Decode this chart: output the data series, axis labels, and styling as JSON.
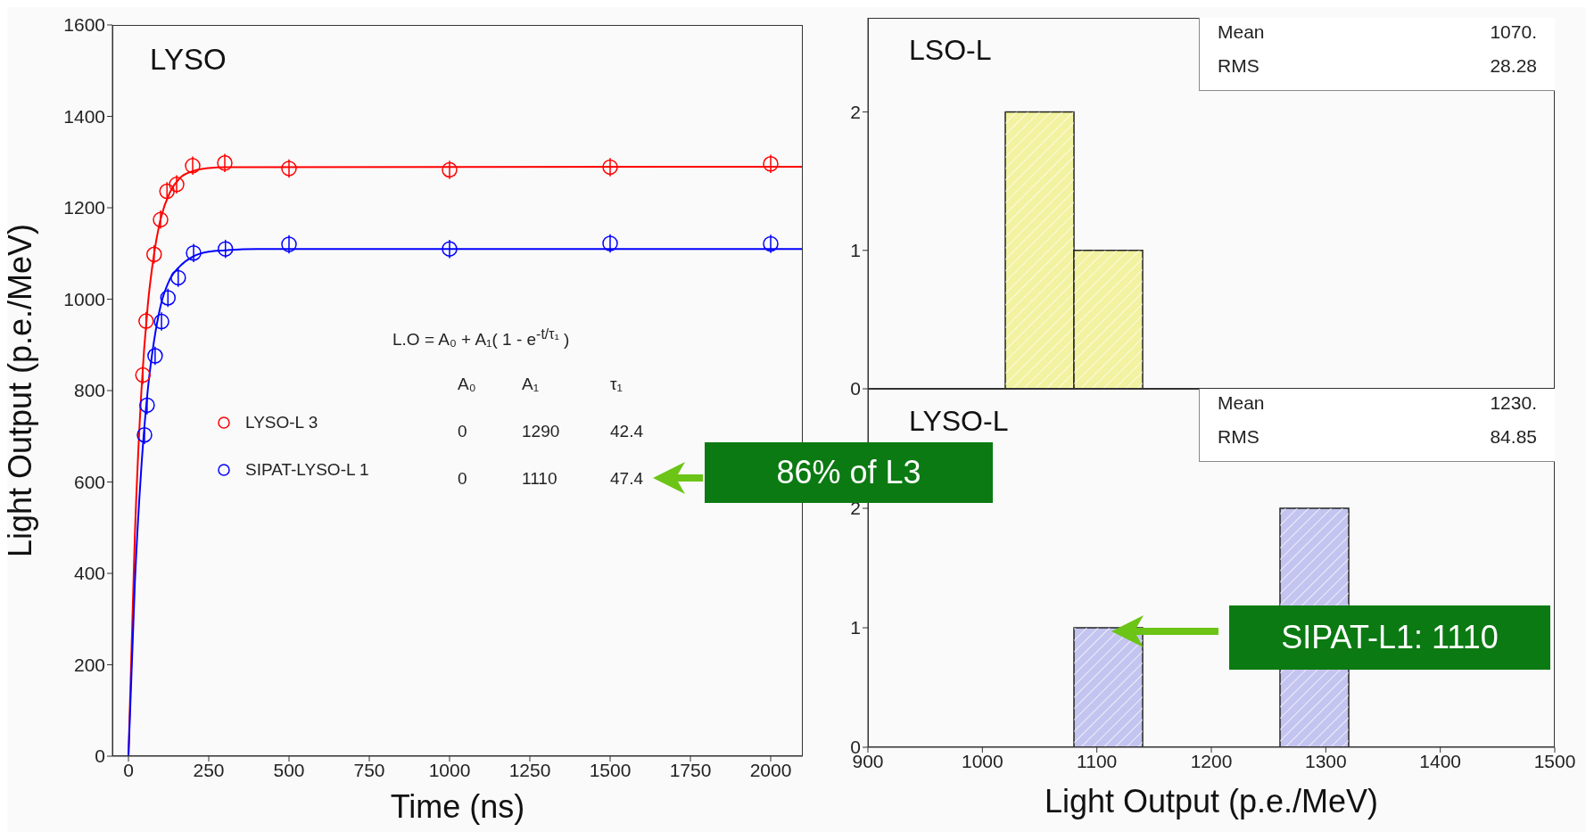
{
  "chart_data": [
    {
      "type": "scatter",
      "title": "LYSO",
      "xlabel": "Time (ns)",
      "ylabel": "Light Output (p.e./MeV)",
      "xlim": [
        -50,
        2100
      ],
      "ylim": [
        0,
        1600
      ],
      "xticks": [
        0,
        250,
        500,
        750,
        1000,
        1250,
        1500,
        1750,
        2000
      ],
      "yticks": [
        0,
        200,
        400,
        600,
        800,
        1000,
        1200,
        1400,
        1600
      ],
      "marker": "circle",
      "legend": "left",
      "series": [
        {
          "name": "LYSO-L 3",
          "color": "#ff0000",
          "x": [
            45,
            55,
            80,
            100,
            120,
            150,
            200,
            300,
            500,
            1000,
            1500,
            2000
          ],
          "values": [
            834,
            952,
            1098,
            1174,
            1236,
            1251,
            1292,
            1298,
            1286,
            1283,
            1289,
            1296
          ],
          "errors": [
            20,
            20,
            20,
            20,
            20,
            20,
            20,
            20,
            20,
            20,
            20,
            20
          ]
        },
        {
          "name": "SIPAT-LYSO-L 1",
          "color": "#0000ff",
          "x": [
            50,
            58,
            83,
            103,
            123,
            155,
            203,
            302,
            500,
            1000,
            1500,
            2000
          ],
          "values": [
            703,
            768,
            876,
            951,
            1003,
            1047,
            1101,
            1110,
            1120,
            1110,
            1122,
            1121
          ],
          "errors": [
            20,
            20,
            20,
            20,
            20,
            20,
            20,
            20,
            20,
            20,
            20,
            20
          ]
        },
        {
          "type": "line",
          "marker": "none",
          "color": "#ff0000",
          "x": [
            0,
            20,
            40,
            60,
            80,
            100,
            130,
            160,
            200,
            250,
            300,
            2100
          ],
          "values": [
            0,
            485,
            795,
            985,
            1100,
            1175,
            1235,
            1265,
            1280,
            1287,
            1289,
            1290
          ]
        },
        {
          "type": "line",
          "marker": "none",
          "color": "#0000ff",
          "x": [
            0,
            20,
            40,
            60,
            80,
            100,
            130,
            160,
            200,
            250,
            300,
            400,
            2100
          ],
          "values": [
            0,
            380,
            630,
            800,
            910,
            985,
            1045,
            1072,
            1093,
            1104,
            1107,
            1110,
            1110
          ]
        }
      ],
      "annotations": [
        "L.O = A₀ + A₁( 1 - e$^{-t/τ₁}$ )",
        "A₀",
        "A₁",
        "τ₁",
        "0",
        "1290",
        "42.4",
        "0",
        "1110",
        "47.4",
        "86% of L3"
      ]
    },
    {
      "type": "histogram",
      "title": "LSO-L",
      "xlim": [
        900,
        1500
      ],
      "ylim": [
        0,
        2.68
      ],
      "xticks": [
        900,
        1000,
        1100,
        1200,
        1300,
        1400,
        1500
      ],
      "yticks": [
        0,
        1,
        2
      ],
      "tick_labels": "y",
      "bins": [
        1020,
        1080,
        1140
      ],
      "values": [
        2,
        1
      ],
      "color": "#f2f2a0",
      "annotations": [
        "Mean",
        "1070.",
        "RMS",
        "28.28"
      ]
    },
    {
      "type": "histogram",
      "title": "LYSO-L",
      "xlabel": "Light Output (p.e./MeV)",
      "xlim": [
        900,
        1500
      ],
      "ylim": [
        0,
        3
      ],
      "xticks": [
        900,
        1000,
        1100,
        1200,
        1300,
        1400,
        1500
      ],
      "yticks": [
        0,
        1,
        2
      ],
      "bins": [
        1080,
        1140,
        1200,
        1260,
        1320
      ],
      "values": [
        1,
        0,
        0,
        2
      ],
      "color": "#c4c4f0",
      "annotations": [
        "Mean",
        "1230.",
        "RMS",
        "84.85",
        "SIPAT-L1: 1110"
      ]
    }
  ]
}
